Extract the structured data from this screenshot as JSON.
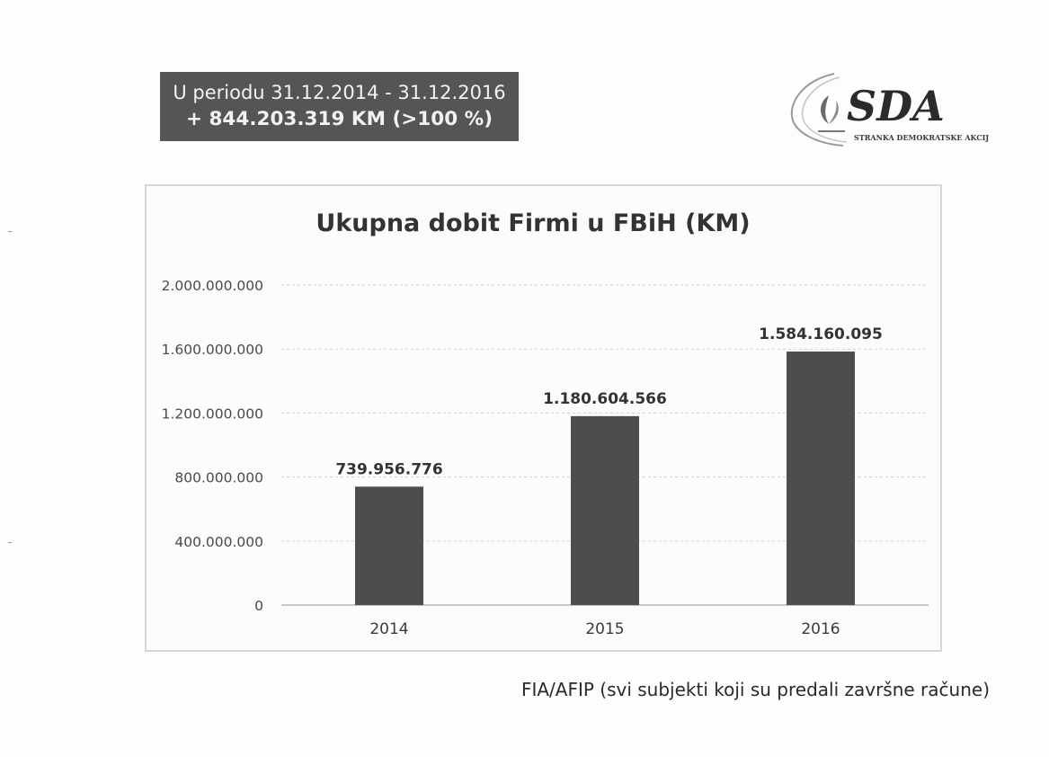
{
  "header": {
    "period_line": "U periodu 31.12.2014 - 31.12.2016",
    "amount_line": "+ 844.203.319 KM (>100 %)"
  },
  "logo": {
    "acronym": "SDA",
    "full_name": "STRANKA DEMOKRATSKE AKCIJE",
    "icon": "fleur-de-lis-swoosh-icon"
  },
  "chart_data": {
    "type": "bar",
    "title": "Ukupna dobit Firmi u FBiH (KM)",
    "categories": [
      "2014",
      "2015",
      "2016"
    ],
    "values": [
      739956776,
      1180604566,
      1584160095
    ],
    "data_labels": [
      "739.956.776",
      "1.180.604.566",
      "1.584.160.095"
    ],
    "y_ticks": [
      0,
      400000000,
      800000000,
      1200000000,
      1600000000,
      2000000000
    ],
    "y_tick_labels": [
      "0",
      "400.000.000",
      "800.000.000",
      "1.200.000.000",
      "1.600.000.000",
      "2.000.000.000"
    ],
    "ylim": [
      0,
      2000000000
    ],
    "grid": true,
    "legend": "none",
    "bar_color": "#4d4d4d",
    "grid_color": "#cfcfcf",
    "xlabel": "",
    "ylabel": ""
  },
  "source_note": "FIA/AFIP (svi subjekti koji su predali završne račune)"
}
